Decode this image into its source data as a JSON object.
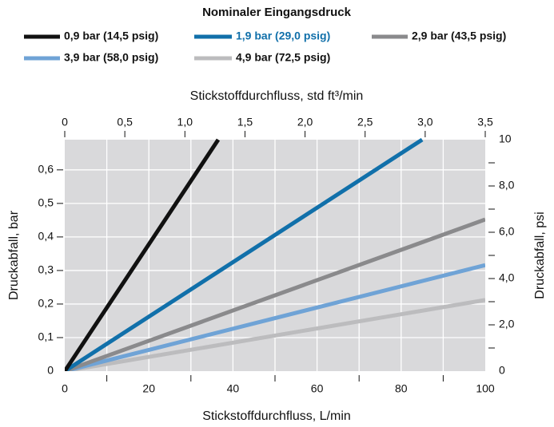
{
  "chart_data": {
    "type": "line",
    "legend_title": "Nominaler Eingangsdruck",
    "xlabel": "Stickstoffdurchfluss, L/min",
    "x2label": "Stickstoffdurchfluss, std ft³/min",
    "ylabel": "Druckabfall, bar",
    "y2label": "Druckabfall, psi",
    "xlim": [
      0,
      100
    ],
    "xticks": [
      0,
      20,
      40,
      60,
      80,
      100
    ],
    "x2lim": [
      0,
      3.5
    ],
    "x2ticks": [
      0,
      {
        "value": 0.5,
        "label": "0,5"
      },
      {
        "value": 1,
        "label": "1,0"
      },
      {
        "value": 1.5,
        "label": "1,5"
      },
      {
        "value": 2,
        "label": "2,0"
      },
      {
        "value": 2.5,
        "label": "2,5"
      },
      {
        "value": 3,
        "label": "3,0"
      },
      {
        "value": 3.5,
        "label": "3,5"
      }
    ],
    "ylim": [
      0,
      0.69
    ],
    "yticks": [
      0,
      {
        "value": 0.1,
        "label": "0,1"
      },
      {
        "value": 0.2,
        "label": "0,2"
      },
      {
        "value": 0.3,
        "label": "0,3"
      },
      {
        "value": 0.4,
        "label": "0,4"
      },
      {
        "value": 0.5,
        "label": "0,5"
      },
      {
        "value": 0.6,
        "label": "0,6"
      }
    ],
    "y2lim": [
      0,
      10
    ],
    "y2ticks": [
      0,
      {
        "value": 2,
        "label": "2,0"
      },
      {
        "value": 4,
        "label": "4,0"
      },
      {
        "value": 6,
        "label": "6,0"
      },
      {
        "value": 8,
        "label": "8,0"
      },
      10
    ],
    "grid": true,
    "series": [
      {
        "name": "0,9 bar (14,5 psig)",
        "color": "#111111",
        "x": [
          0,
          36.5
        ],
        "values": [
          0,
          0.69
        ]
      },
      {
        "name": "1,9 bar (29,0 psig)",
        "color": "#1170aa",
        "x": [
          0,
          85
        ],
        "values": [
          0,
          0.69
        ]
      },
      {
        "name": "2,9 bar (43,5 psig)",
        "color": "#8a8a8c",
        "x": [
          0,
          100
        ],
        "values": [
          0,
          0.452
        ]
      },
      {
        "name": "3,9 bar (58,0 psig)",
        "color": "#6fa3d6",
        "x": [
          0,
          100
        ],
        "values": [
          0,
          0.316
        ]
      },
      {
        "name": "4,9 bar (72,5 psig)",
        "color": "#bcbcbe",
        "x": [
          0,
          100
        ],
        "values": [
          0,
          0.212
        ]
      }
    ]
  }
}
